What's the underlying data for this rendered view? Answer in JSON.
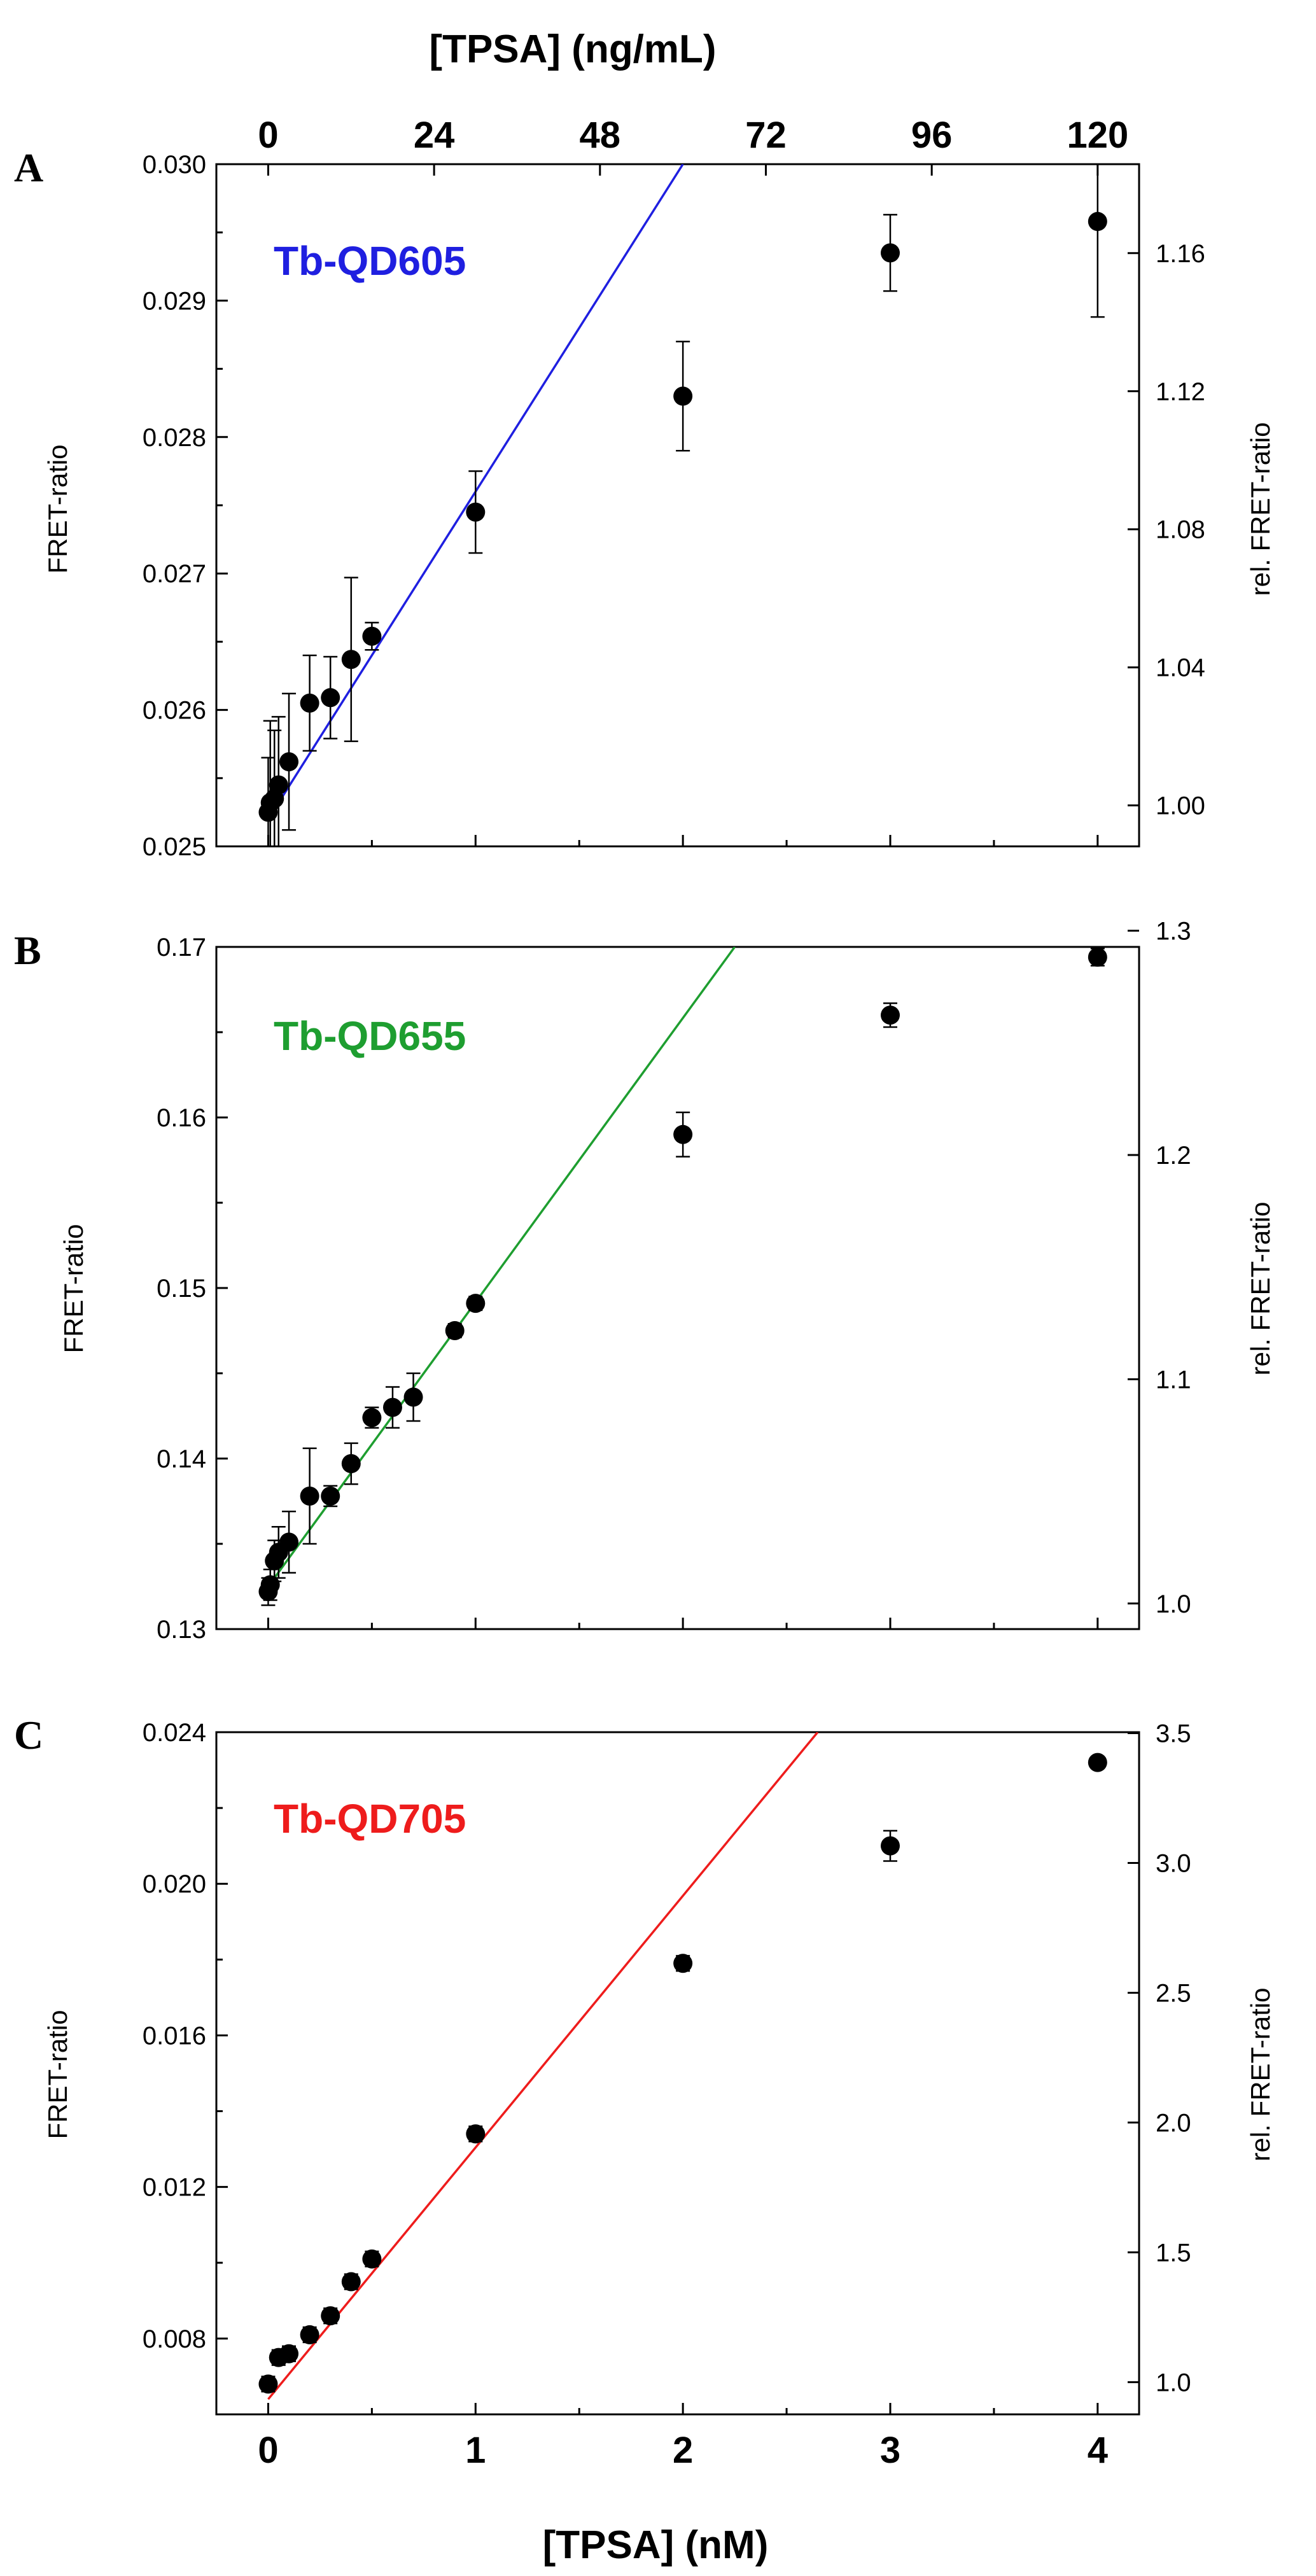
{
  "top_axis": {
    "label": "[TPSA] (ng/mL)",
    "ticks": [
      "0",
      "24",
      "48",
      "72",
      "96",
      "120"
    ],
    "tick_values_nM": [
      0,
      0.8,
      1.6,
      2.4,
      3.2,
      4.0
    ]
  },
  "bottom_axis": {
    "label": "[TPSA] (nM)",
    "ticks": [
      "0",
      "1",
      "2",
      "3",
      "4"
    ],
    "tick_values": [
      0,
      1,
      2,
      3,
      4
    ],
    "xlim": [
      -0.25,
      4.2
    ]
  },
  "colors": {
    "point": "#000000",
    "axis": "#000000"
  },
  "chart_data": [
    {
      "type": "scatter",
      "panel": "A",
      "series_label": "Tb-QD605",
      "color": "#1f1fe0",
      "ylabel": "FRET-ratio",
      "ylabel_right": "rel. FRET-ratio",
      "ylim": [
        0.025,
        0.03
      ],
      "y_ticks": [
        "0.025",
        "0.026",
        "0.027",
        "0.028",
        "0.029",
        "0.030"
      ],
      "y_tick_values": [
        0.025,
        0.026,
        0.027,
        0.028,
        0.029,
        0.03
      ],
      "y_right_ticks": [
        "1.00",
        "1.04",
        "1.08",
        "1.12",
        "1.16"
      ],
      "y_right_tick_values": [
        1.0,
        1.04,
        1.08,
        1.12,
        1.16
      ],
      "y_right_ref": 0.0253,
      "x": [
        0,
        0.01,
        0.03,
        0.05,
        0.1,
        0.2,
        0.3,
        0.4,
        0.5,
        1,
        2,
        3,
        4
      ],
      "y": [
        0.02525,
        0.02532,
        0.02535,
        0.02545,
        0.02562,
        0.02605,
        0.02609,
        0.02637,
        0.02654,
        0.02745,
        0.0283,
        0.02935,
        0.02958
      ],
      "err": [
        0.0004,
        0.0006,
        0.0005,
        0.0005,
        0.0005,
        0.00035,
        0.0003,
        0.0006,
        0.0001,
        0.0003,
        0.0004,
        0.00028,
        0.0007
      ],
      "fit": {
        "x0": 0,
        "y0": 0.0252,
        "x1": 2.0,
        "y1": 0.03
      }
    },
    {
      "type": "scatter",
      "panel": "B",
      "series_label": "Tb-QD655",
      "color": "#1e9e30",
      "ylabel": "FRET-ratio",
      "ylabel_right": "rel. FRET-ratio",
      "ylim": [
        0.13,
        0.17
      ],
      "y_ticks": [
        "0.13",
        "0.14",
        "0.15",
        "0.16",
        "0.17"
      ],
      "y_tick_values": [
        0.13,
        0.14,
        0.15,
        0.16,
        0.17
      ],
      "y_right_ticks": [
        "1.0",
        "1.1",
        "1.2",
        "1.3"
      ],
      "y_right_tick_values": [
        1.0,
        1.1,
        1.2,
        1.3
      ],
      "y_right_ref": 0.1315,
      "x": [
        0,
        0.01,
        0.03,
        0.05,
        0.1,
        0.2,
        0.3,
        0.4,
        0.5,
        0.6,
        0.7,
        0.9,
        1,
        2,
        3,
        4
      ],
      "y": [
        0.1322,
        0.1326,
        0.134,
        0.1345,
        0.1351,
        0.1378,
        0.1378,
        0.1397,
        0.1424,
        0.143,
        0.1436,
        0.1475,
        0.1491,
        0.159,
        0.166,
        0.1694
      ],
      "err": [
        0.0008,
        0.0009,
        0.0012,
        0.0015,
        0.0018,
        0.0028,
        0.0006,
        0.0012,
        0.0006,
        0.0012,
        0.0014,
        0.0004,
        0.0004,
        0.0013,
        0.0007,
        0.0005
      ],
      "fit": {
        "x0": 0,
        "y0": 0.1325,
        "x1": 2.25,
        "y1": 0.17
      }
    },
    {
      "type": "scatter",
      "panel": "C",
      "series_label": "Tb-QD705",
      "color": "#ee1c1c",
      "ylabel": "FRET-ratio",
      "ylabel_right": "rel. FRET-ratio",
      "ylim": [
        0.006,
        0.024
      ],
      "y_ticks": [
        "0.008",
        "0.012",
        "0.016",
        "0.020",
        "0.024"
      ],
      "y_tick_values": [
        0.008,
        0.012,
        0.016,
        0.02,
        0.024
      ],
      "y_right_ticks": [
        "1.0",
        "1.5",
        "2.0",
        "2.5",
        "3.0",
        "3.5"
      ],
      "y_right_tick_values": [
        1.0,
        1.5,
        2.0,
        2.5,
        3.0,
        3.5
      ],
      "y_right_ref": 0.00685,
      "x": [
        0,
        0.05,
        0.1,
        0.2,
        0.3,
        0.4,
        0.5,
        1,
        2,
        3,
        4
      ],
      "y": [
        0.0068,
        0.0075,
        0.0076,
        0.0081,
        0.0086,
        0.0095,
        0.0101,
        0.0134,
        0.0179,
        0.021,
        0.0232
      ],
      "err": [
        0.0002,
        0.0002,
        0.0002,
        0.0002,
        0.0002,
        0.0002,
        0.0002,
        0.0002,
        0.0002,
        0.0004,
        0.0001
      ],
      "fit": {
        "x0": 0,
        "y0": 0.0064,
        "x1": 2.65,
        "y1": 0.024
      }
    }
  ]
}
